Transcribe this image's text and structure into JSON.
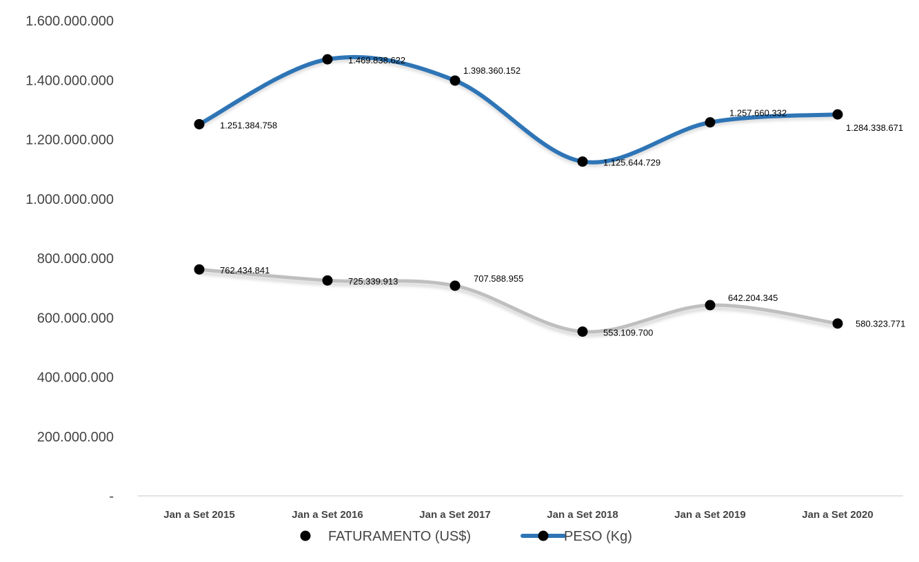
{
  "chart_data": {
    "type": "line",
    "categories": [
      "Jan a Set 2015",
      "Jan a Set 2016",
      "Jan a Set 2017",
      "Jan a Set 2018",
      "Jan a Set 2019",
      "Jan a Set 2020"
    ],
    "series": [
      {
        "name": "PESO (Kg)",
        "values": [
          1251384758,
          1469838622,
          1398360152,
          1125644729,
          1257660332,
          1284338671
        ],
        "labels": [
          "1.251.384.758",
          "1.469.838.622",
          "1.398.360.152",
          "1.125.644.729",
          "1.257.660.332",
          "1.284.338.671"
        ],
        "color": "#2e75b6",
        "line": "smooth"
      },
      {
        "name": "FATURAMENTO (US$)",
        "values": [
          762434841,
          725339913,
          707588955,
          553109700,
          642204345,
          580323771
        ],
        "labels": [
          "762.434.841",
          "725.339.913",
          "707.588.955",
          "553.109.700",
          "642.204.345",
          "580.323.771"
        ],
        "color": "#bfbfbf",
        "line": "smooth-shadow"
      }
    ],
    "ylim": [
      0,
      1600000000
    ],
    "yticks": [
      0,
      200000000,
      400000000,
      600000000,
      800000000,
      1000000000,
      1200000000,
      1400000000,
      1600000000
    ],
    "ytick_labels": [
      "-",
      "200.000.000",
      "400.000.000",
      "600.000.000",
      "800.000.000",
      "1.000.000.000",
      "1.200.000.000",
      "1.400.000.000",
      "1.600.000.000"
    ],
    "marker_color": "#000000",
    "grid": false,
    "legend": [
      {
        "label": "FATURAMENTO (US$)",
        "series": 1
      },
      {
        "label": "PESO (Kg)",
        "series": 0
      }
    ],
    "legend_position": "bottom"
  }
}
